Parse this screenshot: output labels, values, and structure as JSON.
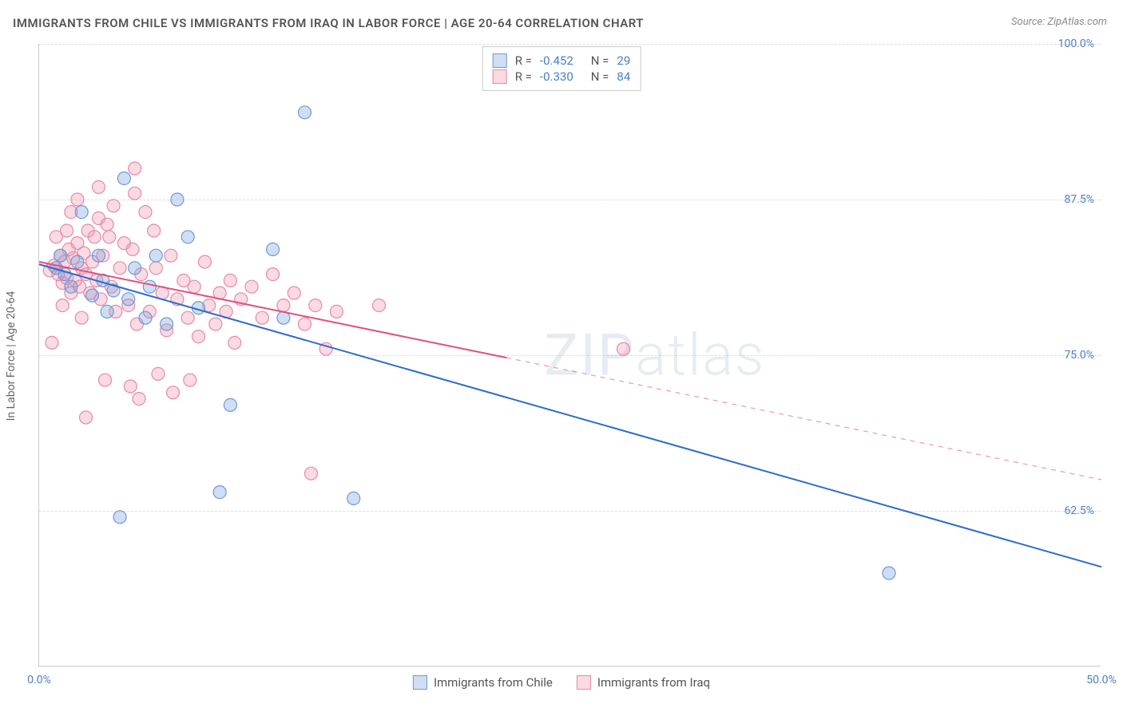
{
  "title": "IMMIGRANTS FROM CHILE VS IMMIGRANTS FROM IRAQ IN LABOR FORCE | AGE 20-64 CORRELATION CHART",
  "source": "Source: ZipAtlas.com",
  "y_axis_title": "In Labor Force | Age 20-64",
  "watermark": "ZIPatlas",
  "chart": {
    "type": "scatter-with-regression",
    "background_color": "#ffffff",
    "grid_color": "#dddddd",
    "axis_color": "#cccccc",
    "tick_label_color": "#4a7fc9",
    "tick_fontsize": 14,
    "xlim": [
      0,
      50
    ],
    "ylim": [
      50,
      100
    ],
    "x_ticks": [
      {
        "v": 0,
        "label": "0.0%"
      },
      {
        "v": 50,
        "label": "50.0%"
      }
    ],
    "y_ticks": [
      {
        "v": 62.5,
        "label": "62.5%"
      },
      {
        "v": 75,
        "label": "75.0%"
      },
      {
        "v": 87.5,
        "label": "87.5%"
      },
      {
        "v": 100,
        "label": "100.0%"
      }
    ],
    "series": [
      {
        "name": "Immigrants from Chile",
        "key": "chile",
        "color_fill": "rgba(120,160,220,0.35)",
        "color_stroke": "#6b9bd8",
        "line_color": "#2d6bc9",
        "line_width": 2,
        "R": "-0.452",
        "N": "29",
        "marker_radius": 8,
        "regression": {
          "x0": 0,
          "y0": 82.3,
          "x1": 50,
          "y1": 58.0,
          "solid_until_x": 50
        },
        "points": [
          [
            0.8,
            82
          ],
          [
            1.2,
            81.5
          ],
          [
            1.5,
            80.5
          ],
          [
            1.8,
            82.5
          ],
          [
            2.0,
            86.5
          ],
          [
            2.5,
            79.8
          ],
          [
            3.0,
            81.0
          ],
          [
            3.2,
            78.5
          ],
          [
            3.5,
            80.2
          ],
          [
            4.0,
            89.2
          ],
          [
            4.2,
            79.5
          ],
          [
            4.5,
            82.0
          ],
          [
            5.0,
            78.0
          ],
          [
            5.5,
            83.0
          ],
          [
            6.0,
            77.5
          ],
          [
            6.5,
            87.5
          ],
          [
            7.0,
            84.5
          ],
          [
            7.5,
            78.8
          ],
          [
            8.5,
            64.0
          ],
          [
            9.0,
            71.0
          ],
          [
            3.8,
            62.0
          ],
          [
            11.0,
            83.5
          ],
          [
            11.5,
            78.0
          ],
          [
            12.5,
            94.5
          ],
          [
            14.8,
            63.5
          ],
          [
            40.0,
            57.5
          ],
          [
            2.8,
            83
          ],
          [
            1.0,
            83
          ],
          [
            5.2,
            80.5
          ]
        ]
      },
      {
        "name": "Immigrants from Iraq",
        "key": "iraq",
        "color_fill": "rgba(240,150,175,0.35)",
        "color_stroke": "#e68aa5",
        "line_color": "#e05080",
        "line_width": 2,
        "R": "-0.330",
        "N": "84",
        "marker_radius": 8,
        "regression": {
          "x0": 0,
          "y0": 82.5,
          "x1": 50,
          "y1": 65.0,
          "solid_until_x": 22
        },
        "points": [
          [
            0.5,
            81.8
          ],
          [
            0.7,
            82.2
          ],
          [
            0.9,
            81.5
          ],
          [
            1.0,
            83.0
          ],
          [
            1.1,
            80.8
          ],
          [
            1.2,
            82.5
          ],
          [
            1.3,
            81.2
          ],
          [
            1.4,
            83.5
          ],
          [
            1.5,
            80.0
          ],
          [
            1.6,
            82.8
          ],
          [
            1.7,
            81.0
          ],
          [
            1.8,
            84.0
          ],
          [
            1.9,
            80.5
          ],
          [
            2.0,
            82.0
          ],
          [
            2.1,
            83.2
          ],
          [
            2.2,
            81.5
          ],
          [
            2.3,
            85.0
          ],
          [
            2.4,
            80.0
          ],
          [
            2.5,
            82.5
          ],
          [
            2.6,
            84.5
          ],
          [
            2.7,
            81.0
          ],
          [
            2.8,
            86.0
          ],
          [
            2.9,
            79.5
          ],
          [
            3.0,
            83.0
          ],
          [
            3.2,
            85.5
          ],
          [
            3.4,
            80.5
          ],
          [
            3.5,
            87.0
          ],
          [
            3.6,
            78.5
          ],
          [
            3.8,
            82.0
          ],
          [
            4.0,
            84.0
          ],
          [
            4.2,
            79.0
          ],
          [
            4.4,
            83.5
          ],
          [
            4.5,
            88.0
          ],
          [
            4.6,
            77.5
          ],
          [
            4.8,
            81.5
          ],
          [
            5.0,
            86.5
          ],
          [
            5.2,
            78.5
          ],
          [
            5.5,
            82.0
          ],
          [
            5.8,
            80.0
          ],
          [
            6.0,
            77.0
          ],
          [
            6.2,
            83.0
          ],
          [
            6.5,
            79.5
          ],
          [
            6.8,
            81.0
          ],
          [
            7.0,
            78.0
          ],
          [
            7.3,
            80.5
          ],
          [
            7.5,
            76.5
          ],
          [
            7.8,
            82.5
          ],
          [
            8.0,
            79.0
          ],
          [
            8.3,
            77.5
          ],
          [
            8.5,
            80.0
          ],
          [
            8.8,
            78.5
          ],
          [
            9.0,
            81.0
          ],
          [
            9.2,
            76.0
          ],
          [
            9.5,
            79.5
          ],
          [
            10.0,
            80.5
          ],
          [
            10.5,
            78.0
          ],
          [
            11.0,
            81.5
          ],
          [
            11.5,
            79.0
          ],
          [
            12.0,
            80.0
          ],
          [
            12.5,
            77.5
          ],
          [
            13.0,
            79.0
          ],
          [
            13.5,
            75.5
          ],
          [
            14.0,
            78.5
          ],
          [
            12.8,
            65.5
          ],
          [
            4.5,
            90.0
          ],
          [
            2.8,
            88.5
          ],
          [
            3.1,
            73.0
          ],
          [
            4.3,
            72.5
          ],
          [
            5.6,
            73.5
          ],
          [
            6.3,
            72.0
          ],
          [
            7.1,
            73.0
          ],
          [
            1.5,
            86.5
          ],
          [
            1.8,
            87.5
          ],
          [
            2.2,
            70.0
          ],
          [
            0.6,
            76.0
          ],
          [
            1.3,
            85.0
          ],
          [
            0.8,
            84.5
          ],
          [
            1.1,
            79.0
          ],
          [
            4.7,
            71.5
          ],
          [
            3.3,
            84.5
          ],
          [
            5.4,
            85.0
          ],
          [
            2.0,
            78.0
          ],
          [
            27.5,
            75.5
          ],
          [
            16.0,
            79.0
          ]
        ]
      }
    ],
    "legend_bottom": [
      {
        "key": "chile",
        "label": "Immigrants from Chile"
      },
      {
        "key": "iraq",
        "label": "Immigrants from Iraq"
      }
    ]
  }
}
